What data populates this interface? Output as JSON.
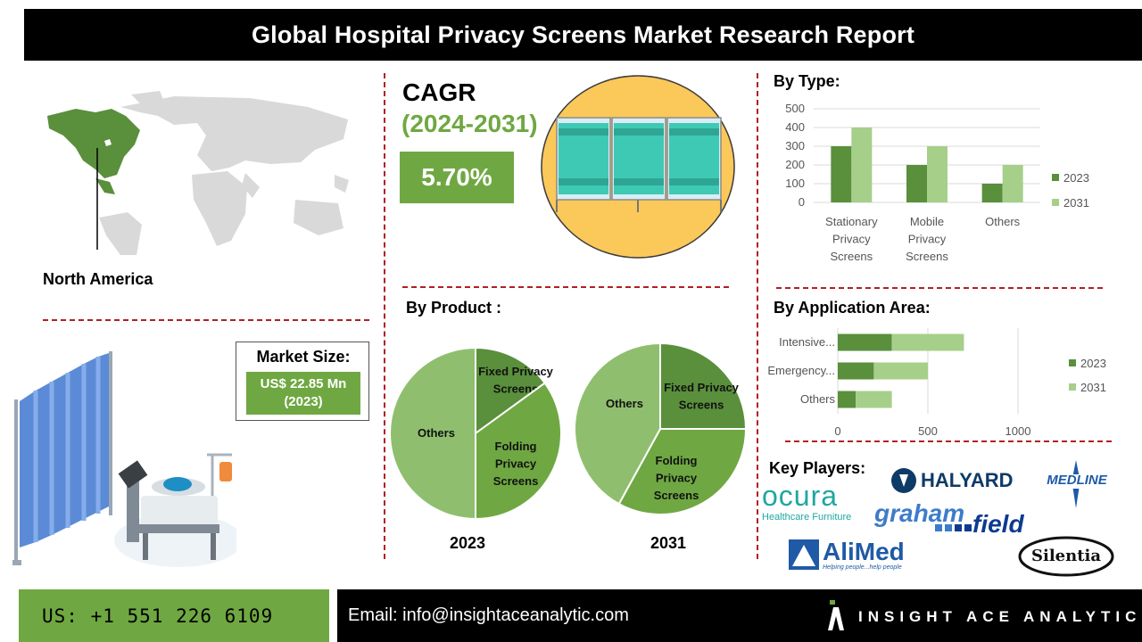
{
  "title": "Global Hospital Privacy Screens Market Research Report",
  "region": {
    "label": "North America"
  },
  "cagr": {
    "label": "CAGR",
    "period": "(2024-2031)",
    "value": "5.70%"
  },
  "market_size": {
    "label": "Market Size:",
    "value_line1": "US$ 22.85 Mn",
    "value_line2": "(2023)"
  },
  "sections": {
    "by_type": "By Type:",
    "by_product": "By Product :",
    "by_application": "By Application Area:",
    "key_players": "Key Players:"
  },
  "key_players": [
    {
      "name": "ocura",
      "tagline": "Healthcare Furniture"
    },
    {
      "name": "HALYARD"
    },
    {
      "name": "MEDLINE"
    },
    {
      "name": "graham",
      "name2": "field"
    },
    {
      "name": "AliMed",
      "tagline": "Helping people...help people"
    },
    {
      "name": "Silentia"
    }
  ],
  "footer": {
    "phone": "US: +1 551 226 6109",
    "email": "Email: info@insightaceanalytic.com",
    "brand": "INSIGHT ACE ANALYTIC"
  },
  "colors": {
    "dark_green": "#5a8f3c",
    "mid_green": "#6fa842",
    "light_green": "#a6cf8a",
    "pie_light": "#8fbf6e",
    "accent_red": "#b21f24"
  },
  "chart_data": [
    {
      "type": "bar",
      "id": "by_type",
      "categories": [
        "Stationary Privacy Screens",
        "Mobile Privacy Screens",
        "Others"
      ],
      "category_lines": [
        [
          "Stationary",
          "Privacy",
          "Screens"
        ],
        [
          "Mobile",
          "Privacy",
          "Screens"
        ],
        [
          "Others"
        ]
      ],
      "series": [
        {
          "name": "2023",
          "values": [
            300,
            200,
            100
          ],
          "color": "#5a8f3c"
        },
        {
          "name": "2031",
          "values": [
            400,
            300,
            200
          ],
          "color": "#a6cf8a"
        }
      ],
      "yticks": [
        0,
        100,
        200,
        300,
        400,
        500
      ],
      "ylim": [
        0,
        500
      ],
      "grid": true,
      "legend": "right"
    },
    {
      "type": "bar",
      "id": "by_application",
      "orientation": "horizontal",
      "stacked": true,
      "categories": [
        "Intensive...",
        "Emergency...",
        "Others"
      ],
      "series": [
        {
          "name": "2023",
          "values": [
            300,
            200,
            100
          ],
          "color": "#5a8f3c"
        },
        {
          "name": "2031",
          "values": [
            400,
            300,
            200
          ],
          "color": "#a6cf8a"
        }
      ],
      "xticks": [
        0,
        500,
        1000
      ],
      "xlim": [
        0,
        1000
      ],
      "grid": true,
      "legend": "right"
    },
    {
      "type": "pie",
      "id": "product_2023",
      "title": "2023",
      "slices": [
        {
          "label": "Fixed Privacy Screens",
          "lines": [
            "Fixed Privacy",
            "Screens"
          ],
          "value": 15,
          "color": "#5a8f3c"
        },
        {
          "label": "Folding Privacy Screens",
          "lines": [
            "Folding",
            "Privacy",
            "Screens"
          ],
          "value": 35,
          "color": "#6fa842"
        },
        {
          "label": "Others",
          "lines": [
            "Others"
          ],
          "value": 50,
          "color": "#8fbf6e"
        }
      ]
    },
    {
      "type": "pie",
      "id": "product_2031",
      "title": "2031",
      "slices": [
        {
          "label": "Fixed Privacy Screens",
          "lines": [
            "Fixed Privacy",
            "Screens"
          ],
          "value": 25,
          "color": "#5a8f3c"
        },
        {
          "label": "Folding Privacy Screens",
          "lines": [
            "Folding",
            "Privacy",
            "Screens"
          ],
          "value": 33,
          "color": "#6fa842"
        },
        {
          "label": "Others",
          "lines": [
            "Others"
          ],
          "value": 42,
          "color": "#8fbf6e"
        }
      ]
    }
  ]
}
